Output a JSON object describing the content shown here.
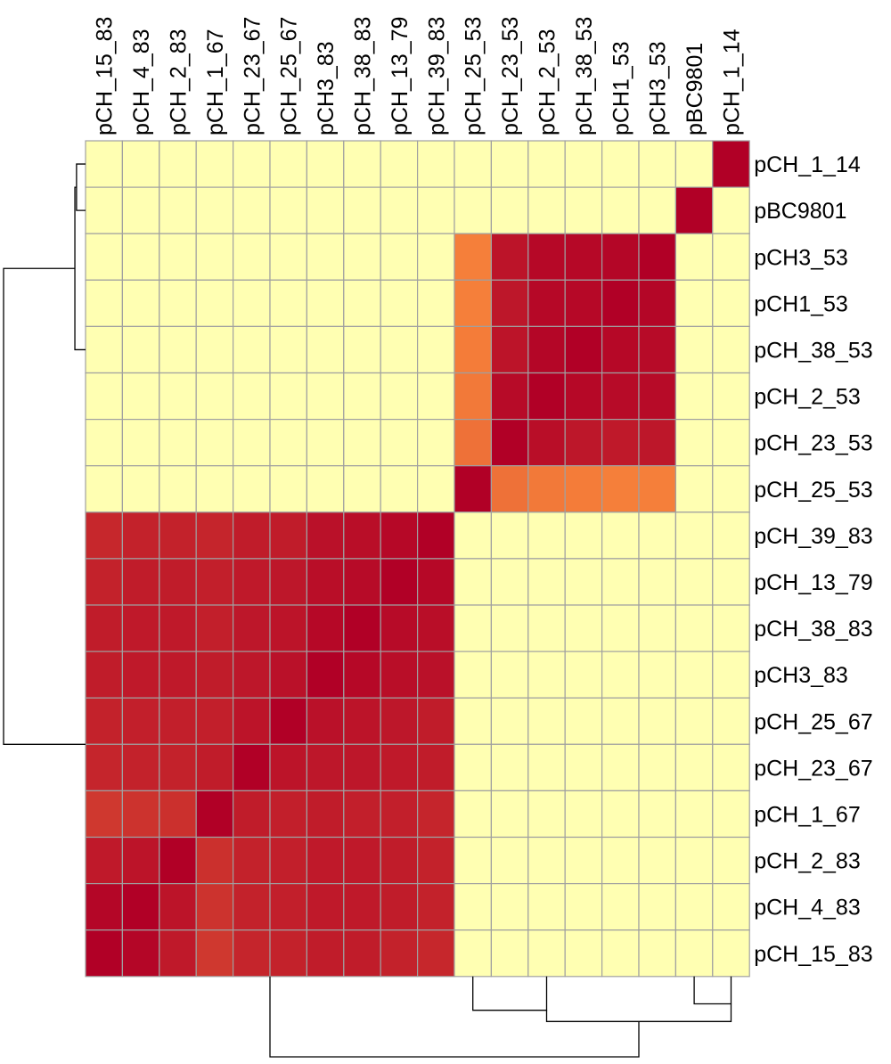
{
  "chart_data": {
    "type": "heatmap",
    "columns": [
      "pCH_15_83",
      "pCH_4_83",
      "pCH_2_83",
      "pCH_1_67",
      "pCH_23_67",
      "pCH_25_67",
      "pCH3_83",
      "pCH_38_83",
      "pCH_13_79",
      "pCH_39_83",
      "pCH_25_53",
      "pCH_23_53",
      "pCH_2_53",
      "pCH_38_53",
      "pCH1_53",
      "pCH3_53",
      "pBC9801",
      "pCH_1_14"
    ],
    "rows": [
      "pCH_1_14",
      "pBC9801",
      "pCH3_53",
      "pCH1_53",
      "pCH_38_53",
      "pCH_2_53",
      "pCH_23_53",
      "pCH_25_53",
      "pCH_39_83",
      "pCH_13_79",
      "pCH_38_83",
      "pCH3_83",
      "pCH_25_67",
      "pCH_23_67",
      "pCH_1_67",
      "pCH_2_83",
      "pCH_4_83",
      "pCH_15_83"
    ],
    "values": [
      [
        0,
        0,
        0,
        0,
        0,
        0,
        0,
        0,
        0,
        0,
        0,
        0,
        0,
        0,
        0,
        0,
        0,
        1
      ],
      [
        0,
        0,
        0,
        0,
        0,
        0,
        0,
        0,
        0,
        0,
        0,
        0,
        0,
        0,
        0,
        0,
        1,
        0
      ],
      [
        0,
        0,
        0,
        0,
        0,
        0,
        0,
        0,
        0,
        0,
        0.55,
        0.93,
        0.97,
        0.97,
        0.98,
        1,
        0,
        0
      ],
      [
        0,
        0,
        0,
        0,
        0,
        0,
        0,
        0,
        0,
        0,
        0.55,
        0.92,
        0.97,
        0.97,
        1,
        0.98,
        0,
        0
      ],
      [
        0,
        0,
        0,
        0,
        0,
        0,
        0,
        0,
        0,
        0,
        0.56,
        0.93,
        0.98,
        1,
        0.97,
        0.96,
        0,
        0
      ],
      [
        0,
        0,
        0,
        0,
        0,
        0,
        0,
        0,
        0,
        0,
        0.57,
        0.96,
        1,
        0.97,
        0.96,
        0.96,
        0,
        0
      ],
      [
        0,
        0,
        0,
        0,
        0,
        0,
        0,
        0,
        0,
        0,
        0.6,
        1,
        0.95,
        0.92,
        0.91,
        0.92,
        0,
        0
      ],
      [
        0,
        0,
        0,
        0,
        0,
        0,
        0,
        0,
        0,
        0,
        1,
        0.6,
        0.57,
        0.56,
        0.55,
        0.55,
        0,
        0
      ],
      [
        0.86,
        0.88,
        0.88,
        0.87,
        0.9,
        0.9,
        0.94,
        0.95,
        0.97,
        1,
        0,
        0,
        0,
        0,
        0,
        0,
        0,
        0
      ],
      [
        0.88,
        0.9,
        0.9,
        0.89,
        0.91,
        0.92,
        0.95,
        0.96,
        1,
        0.97,
        0,
        0,
        0,
        0,
        0,
        0,
        0,
        0
      ],
      [
        0.9,
        0.91,
        0.91,
        0.89,
        0.92,
        0.93,
        0.97,
        1,
        0.96,
        0.95,
        0,
        0,
        0,
        0,
        0,
        0,
        0,
        0
      ],
      [
        0.9,
        0.91,
        0.91,
        0.9,
        0.92,
        0.94,
        1,
        0.97,
        0.95,
        0.94,
        0,
        0,
        0,
        0,
        0,
        0,
        0,
        0
      ],
      [
        0.88,
        0.89,
        0.89,
        0.89,
        0.93,
        1,
        0.94,
        0.93,
        0.92,
        0.9,
        0,
        0,
        0,
        0,
        0,
        0,
        0,
        0
      ],
      [
        0.87,
        0.88,
        0.88,
        0.9,
        1,
        0.93,
        0.92,
        0.92,
        0.91,
        0.9,
        0,
        0,
        0,
        0,
        0,
        0,
        0,
        0
      ],
      [
        0.8,
        0.82,
        0.83,
        1,
        0.9,
        0.89,
        0.9,
        0.89,
        0.89,
        0.87,
        0,
        0,
        0,
        0,
        0,
        0,
        0,
        0
      ],
      [
        0.91,
        0.93,
        1,
        0.83,
        0.88,
        0.89,
        0.91,
        0.91,
        0.9,
        0.88,
        0,
        0,
        0,
        0,
        0,
        0,
        0,
        0
      ],
      [
        0.98,
        1,
        0.93,
        0.82,
        0.88,
        0.89,
        0.91,
        0.91,
        0.9,
        0.88,
        0,
        0,
        0,
        0,
        0,
        0,
        0,
        0
      ],
      [
        1,
        0.98,
        0.91,
        0.8,
        0.87,
        0.88,
        0.9,
        0.9,
        0.88,
        0.86,
        0,
        0,
        0,
        0,
        0,
        0,
        0,
        0
      ]
    ],
    "colors": {
      "low": "#FFFFB2",
      "mid": "#FD8D3C",
      "high": "#B10026",
      "grid": "#A0A0A0",
      "dendrogram": "#000000"
    },
    "col_dendrogram": [
      {
        "a": 10.5,
        "b": 12.5,
        "bottom_a": 0,
        "bottom_b": 0,
        "h": 0.42
      },
      {
        "a": 16.5,
        "b": 17.5,
        "bottom_a": 0,
        "bottom_b": 0,
        "h": 0.34
      },
      {
        "a": 12.5,
        "b": 17.5,
        "bottom_a": 0.42,
        "bottom_b": 0.34,
        "h": 0.56
      },
      {
        "a": 5.0,
        "b": 15.0,
        "bottom_a": 0,
        "bottom_b": 0.56,
        "h": 1.0
      }
    ],
    "row_dendrogram": [
      {
        "a": 0.5,
        "b": 1.5,
        "bottom_a": 0,
        "bottom_b": 0,
        "h": 0.11
      },
      {
        "a": 1.0,
        "b": 4.5,
        "bottom_a": 0.11,
        "bottom_b": 0,
        "h": 0.13
      },
      {
        "a": 2.75,
        "b": 13.0,
        "bottom_a": 0.13,
        "bottom_b": 0,
        "h": 1.0
      }
    ]
  }
}
